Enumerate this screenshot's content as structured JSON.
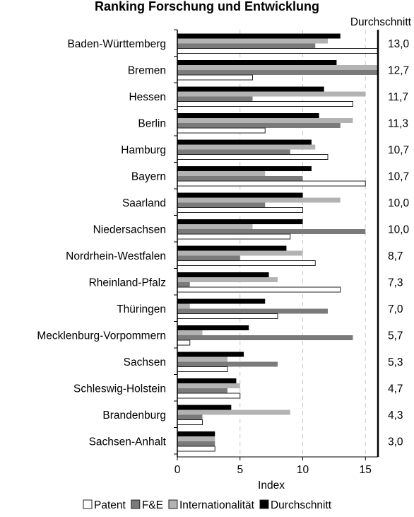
{
  "chart_data": {
    "type": "bar",
    "title": "Ranking Forschung und Entwicklung",
    "value_column_header": "Durchschnitt",
    "xlabel": "Index",
    "xlim": [
      0,
      16
    ],
    "xticks": [
      0,
      5,
      10,
      15
    ],
    "grid": "vertical dashed at 5, 10, 15",
    "legend_position": "bottom",
    "categories": [
      "Baden-Württemberg",
      "Bremen",
      "Hessen",
      "Berlin",
      "Hamburg",
      "Bayern",
      "Saarland",
      "Niedersachsen",
      "Nordrhein-Westfalen",
      "Rheinland-Pfalz",
      "Thüringen",
      "Mecklenburg-Vorpommern",
      "Sachsen",
      "Schleswig-Holstein",
      "Brandenburg",
      "Sachsen-Anhalt"
    ],
    "series": [
      {
        "name": "Durchschnitt",
        "color": "#000000",
        "values": [
          13.0,
          12.7,
          11.7,
          11.3,
          10.7,
          10.7,
          10.0,
          10.0,
          8.7,
          7.3,
          7.0,
          5.7,
          5.3,
          4.7,
          4.3,
          3.0
        ]
      },
      {
        "name": "Internationalität",
        "color": "#b3b3b3",
        "values": [
          12,
          16,
          15,
          14,
          11,
          7,
          13,
          6,
          10,
          8,
          1,
          2,
          4,
          5,
          9,
          3
        ]
      },
      {
        "name": "F&E",
        "color": "#7a7a7a",
        "values": [
          11,
          16,
          6,
          13,
          9,
          10,
          7,
          15,
          5,
          1,
          12,
          14,
          8,
          4,
          2,
          3
        ]
      },
      {
        "name": "Patent",
        "color": "#ffffff",
        "values": [
          16,
          6,
          14,
          7,
          12,
          15,
          10,
          9,
          11,
          13,
          8,
          1,
          4,
          5,
          2,
          3
        ]
      }
    ],
    "value_labels": [
      "13,0",
      "12,7",
      "11,7",
      "11,3",
      "10,7",
      "10,7",
      "10,0",
      "10,0",
      "8,7",
      "7,3",
      "7,0",
      "5,7",
      "5,3",
      "4,7",
      "4,3",
      "3,0"
    ],
    "tick_labels": [
      "0",
      "5",
      "10",
      "15"
    ],
    "legend": [
      {
        "name": "Patent",
        "color": "#ffffff"
      },
      {
        "name": "F&E",
        "color": "#7a7a7a"
      },
      {
        "name": "Internationalität",
        "color": "#b3b3b3"
      },
      {
        "name": "Durchschnitt",
        "color": "#000000"
      }
    ]
  }
}
